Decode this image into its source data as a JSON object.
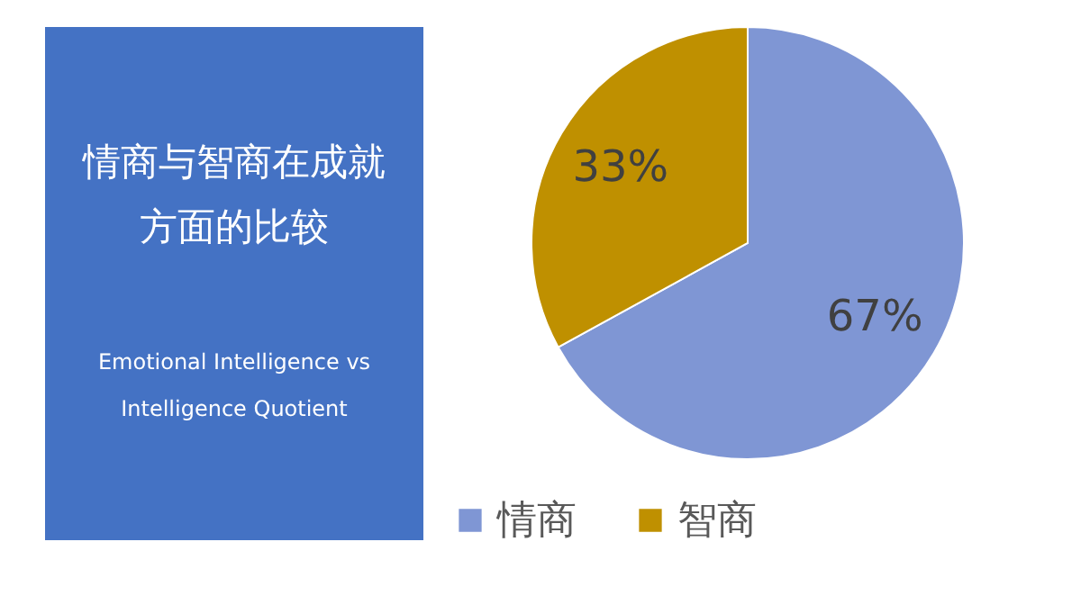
{
  "chart_data": {
    "type": "pie",
    "title": "情商与智商在成就方面的比较",
    "subtitle": "Emotional Intelligence vs Intelligence Quotient",
    "categories": [
      "情商",
      "智商"
    ],
    "values": [
      67,
      33
    ],
    "colors": [
      "#7f96d4",
      "#bf9000"
    ],
    "value_labels": [
      "67%",
      "33%"
    ],
    "legend": "bottom"
  }
}
